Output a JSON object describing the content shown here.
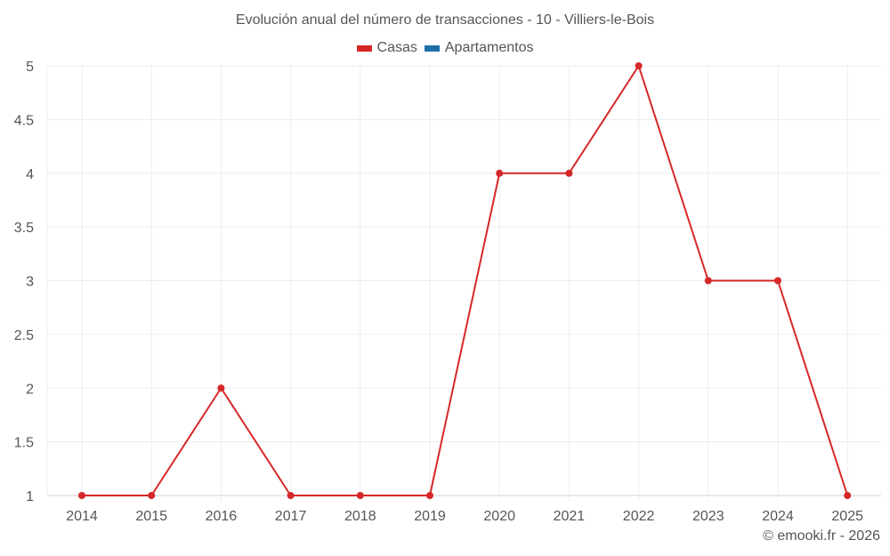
{
  "chart_data": {
    "type": "line",
    "title": "Evolución anual del número de transacciones - 10 - Villiers-le-Bois",
    "xlabel": "",
    "ylabel": "",
    "categories": [
      "2014",
      "2015",
      "2016",
      "2017",
      "2018",
      "2019",
      "2020",
      "2021",
      "2022",
      "2023",
      "2024",
      "2025"
    ],
    "series": [
      {
        "name": "Casas",
        "color": "#d62728",
        "values": [
          1,
          1,
          2,
          1,
          1,
          1,
          4,
          4,
          5,
          3,
          3,
          1
        ]
      },
      {
        "name": "Apartamentos",
        "color": "#1f6fa8",
        "values": []
      }
    ],
    "ylim": [
      1,
      5
    ],
    "yticks": [
      "1",
      "1.5",
      "2",
      "2.5",
      "3",
      "3.5",
      "4",
      "4.5",
      "5"
    ],
    "grid": true,
    "legend_position": "top"
  },
  "legend": [
    {
      "label": "Casas",
      "color": "#d62728"
    },
    {
      "label": "Apartamentos",
      "color": "#1f6fa8"
    }
  ],
  "credit": "© emooki.fr - 2026"
}
